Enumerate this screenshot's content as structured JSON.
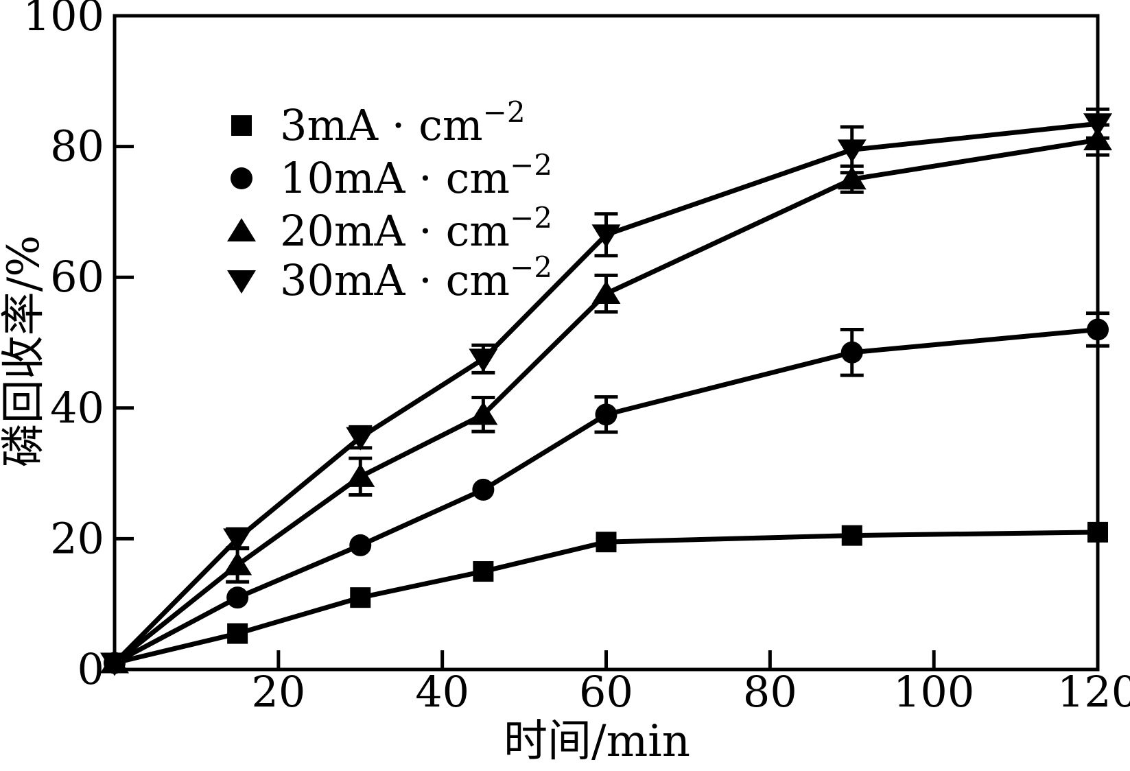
{
  "chart_data": {
    "type": "line",
    "title": "",
    "xlabel": "时间/min",
    "ylabel": "磷回收率/%",
    "xlim": [
      0,
      120
    ],
    "ylim": [
      0,
      100
    ],
    "xticks": [
      20,
      40,
      60,
      80,
      100,
      120
    ],
    "yticks": [
      0,
      20,
      40,
      60,
      80,
      100
    ],
    "grid": false,
    "legend_position": "upper-left-inside",
    "line_color": "#000000",
    "background_color": "#ffffff",
    "x": [
      0,
      15,
      30,
      45,
      60,
      90,
      120
    ],
    "series": [
      {
        "name": "3mA·cm⁻²",
        "label_base": "3mA · cm",
        "label_sup": "−2",
        "marker": "square",
        "values": [
          1,
          5.5,
          11,
          15,
          19.5,
          20.5,
          21
        ],
        "errors": [
          0,
          0,
          0,
          0,
          0,
          0,
          0
        ]
      },
      {
        "name": "10mA·cm⁻²",
        "label_base": "10mA · cm",
        "label_sup": "−2",
        "marker": "circle",
        "values": [
          1,
          11,
          19,
          27.5,
          39,
          48.5,
          52
        ],
        "errors": [
          0,
          0,
          0,
          0,
          2.7,
          3.5,
          2.5
        ]
      },
      {
        "name": "20mA·cm⁻²",
        "label_base": "20mA · cm",
        "label_sup": "−2",
        "marker": "triangle-up",
        "values": [
          1,
          16,
          29.5,
          39,
          57.5,
          75,
          81
        ],
        "errors": [
          0,
          2.6,
          2.8,
          2.6,
          2.8,
          2.0,
          2.3
        ]
      },
      {
        "name": "30mA·cm⁻²",
        "label_base": "30mA · cm",
        "label_sup": "−2",
        "marker": "triangle-down",
        "values": [
          1,
          20,
          35.5,
          47.5,
          66.5,
          79.5,
          83.5
        ],
        "errors": [
          0,
          1.5,
          1.6,
          2.1,
          3.2,
          3.5,
          2.2
        ]
      }
    ]
  }
}
